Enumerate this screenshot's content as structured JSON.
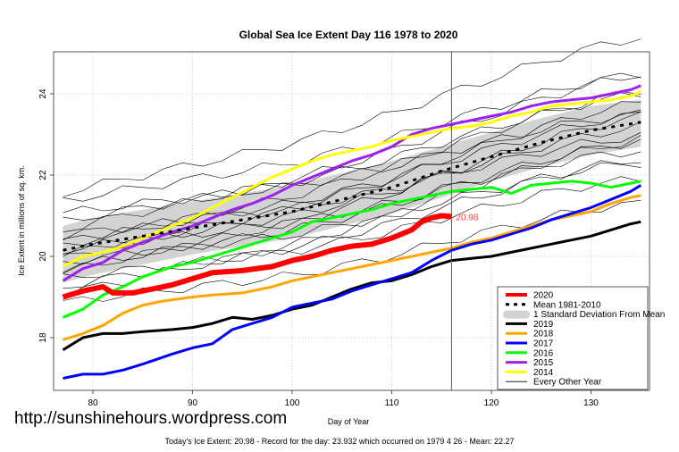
{
  "chart_data": {
    "type": "line",
    "title": "Global Sea Ice Extent Day 116 1978 to 2020",
    "xlabel": "Day of Year",
    "ylabel": "Ice Extent in millions of sq. km.",
    "xlim": [
      77,
      135
    ],
    "ylim": [
      16.8,
      24.9
    ],
    "xticks": [
      80,
      90,
      100,
      110,
      120,
      130
    ],
    "yticks": [
      18,
      20,
      22,
      24
    ],
    "grid": true,
    "current_day": 116,
    "current_value_label": "20.98",
    "legend_position": "bottom-right",
    "legend": [
      {
        "label": "2020",
        "color": "#ff0000",
        "style": "thick"
      },
      {
        "label": "Mean 1981-2010",
        "color": "#000000",
        "style": "dotted"
      },
      {
        "label": "1 Standard Deviation From Mean",
        "color": "#d3d3d3",
        "style": "band"
      },
      {
        "label": "2019",
        "color": "#000000",
        "style": "solid"
      },
      {
        "label": "2018",
        "color": "#ffa500",
        "style": "solid"
      },
      {
        "label": "2017",
        "color": "#0000ff",
        "style": "solid"
      },
      {
        "label": "2016",
        "color": "#00ff00",
        "style": "solid"
      },
      {
        "label": "2015",
        "color": "#a020f0",
        "style": "solid"
      },
      {
        "label": "2014",
        "color": "#ffff00",
        "style": "solid"
      },
      {
        "label": "Every Other Year",
        "color": "#000000",
        "style": "thin"
      }
    ],
    "series": [
      {
        "name": "2020",
        "color": "#ff0000",
        "x": [
          77,
          79,
          81,
          82,
          84,
          86,
          88,
          90,
          92,
          95,
          98,
          100,
          102,
          104,
          106,
          108,
          110,
          112,
          113,
          114,
          115,
          116
        ],
        "values": [
          19.0,
          19.15,
          19.25,
          19.1,
          19.1,
          19.2,
          19.3,
          19.45,
          19.6,
          19.65,
          19.75,
          19.9,
          20.0,
          20.15,
          20.25,
          20.3,
          20.45,
          20.65,
          20.85,
          20.95,
          21.0,
          20.98
        ]
      },
      {
        "name": "2019",
        "color": "#000000",
        "x": [
          77,
          79,
          81,
          83,
          85,
          88,
          90,
          92,
          94,
          96,
          98,
          100,
          102,
          104,
          106,
          108,
          110,
          112,
          114,
          116,
          118,
          120,
          122,
          124,
          126,
          128,
          130,
          132,
          134,
          135
        ],
        "values": [
          17.7,
          18.0,
          18.1,
          18.1,
          18.15,
          18.2,
          18.25,
          18.35,
          18.5,
          18.45,
          18.55,
          18.7,
          18.8,
          19.0,
          19.2,
          19.35,
          19.4,
          19.55,
          19.75,
          19.9,
          19.95,
          20.0,
          20.1,
          20.2,
          20.3,
          20.4,
          20.5,
          20.65,
          20.8,
          20.85
        ]
      },
      {
        "name": "2018",
        "color": "#ffa500",
        "x": [
          77,
          79,
          81,
          83,
          85,
          87,
          90,
          92,
          95,
          98,
          100,
          102,
          104,
          106,
          108,
          110,
          112,
          114,
          116,
          118,
          120,
          122,
          124,
          126,
          128,
          130,
          132,
          134,
          135
        ],
        "values": [
          17.95,
          18.1,
          18.3,
          18.6,
          18.8,
          18.9,
          19.0,
          19.05,
          19.1,
          19.25,
          19.4,
          19.5,
          19.6,
          19.7,
          19.8,
          19.9,
          20.0,
          20.1,
          20.2,
          20.35,
          20.45,
          20.6,
          20.75,
          20.9,
          21.0,
          21.1,
          21.3,
          21.45,
          21.5
        ]
      },
      {
        "name": "2017",
        "color": "#0000ff",
        "x": [
          77,
          79,
          81,
          83,
          85,
          88,
          90,
          92,
          94,
          96,
          98,
          100,
          102,
          104,
          106,
          108,
          110,
          112,
          114,
          116,
          118,
          120,
          122,
          124,
          126,
          128,
          130,
          132,
          134,
          135
        ],
        "values": [
          17.0,
          17.1,
          17.1,
          17.2,
          17.35,
          17.6,
          17.75,
          17.85,
          18.2,
          18.35,
          18.5,
          18.75,
          18.85,
          18.95,
          19.15,
          19.3,
          19.45,
          19.6,
          19.9,
          20.15,
          20.3,
          20.4,
          20.55,
          20.7,
          20.9,
          21.05,
          21.2,
          21.4,
          21.6,
          21.75
        ]
      },
      {
        "name": "2016",
        "color": "#00ff00",
        "x": [
          77,
          79,
          81,
          83,
          85,
          88,
          90,
          92,
          94,
          96,
          98,
          100,
          102,
          104,
          106,
          108,
          110,
          112,
          114,
          116,
          118,
          120,
          122,
          124,
          126,
          128,
          130,
          132,
          134,
          135
        ],
        "values": [
          18.5,
          18.7,
          19.05,
          19.25,
          19.5,
          19.75,
          19.85,
          20.0,
          20.15,
          20.3,
          20.45,
          20.6,
          20.85,
          20.95,
          21.05,
          21.15,
          21.3,
          21.4,
          21.5,
          21.6,
          21.65,
          21.7,
          21.55,
          21.75,
          21.8,
          21.85,
          21.8,
          21.7,
          21.8,
          21.85
        ]
      },
      {
        "name": "2015",
        "color": "#a020f0",
        "x": [
          77,
          79,
          81,
          83,
          85,
          88,
          90,
          92,
          94,
          96,
          98,
          100,
          102,
          104,
          106,
          108,
          110,
          112,
          114,
          116,
          118,
          120,
          122,
          124,
          126,
          128,
          130,
          132,
          134,
          135
        ],
        "values": [
          19.4,
          19.7,
          19.85,
          20.15,
          20.35,
          20.6,
          20.75,
          20.95,
          21.15,
          21.3,
          21.5,
          21.75,
          21.95,
          22.15,
          22.35,
          22.5,
          22.7,
          23.0,
          23.15,
          23.25,
          23.35,
          23.45,
          23.55,
          23.7,
          23.8,
          23.85,
          23.9,
          24.0,
          24.1,
          24.2
        ]
      },
      {
        "name": "2014",
        "color": "#ffff00",
        "x": [
          77,
          79,
          81,
          83,
          85,
          88,
          90,
          92,
          94,
          96,
          98,
          100,
          102,
          104,
          106,
          108,
          110,
          112,
          114,
          116,
          118,
          120,
          122,
          124,
          126,
          128,
          130,
          132,
          134,
          135
        ],
        "values": [
          19.75,
          20.0,
          20.1,
          20.25,
          20.45,
          20.75,
          20.95,
          21.2,
          21.45,
          21.7,
          21.95,
          22.15,
          22.35,
          22.5,
          22.6,
          22.7,
          22.85,
          22.95,
          23.05,
          23.15,
          23.2,
          23.3,
          23.45,
          23.55,
          23.7,
          23.75,
          23.8,
          23.85,
          23.95,
          24.05
        ]
      },
      {
        "name": "Mean 1981-2010",
        "color": "#000000",
        "x": [
          77,
          80,
          85,
          90,
          95,
          100,
          105,
          110,
          115,
          120,
          125,
          130,
          135
        ],
        "values": [
          20.15,
          20.3,
          20.5,
          20.7,
          20.9,
          21.1,
          21.4,
          21.7,
          22.1,
          22.45,
          22.8,
          23.1,
          23.3
        ]
      }
    ],
    "sd_band": {
      "x": [
        77,
        80,
        85,
        90,
        95,
        100,
        105,
        110,
        115,
        120,
        125,
        130,
        135
      ],
      "upper": [
        20.75,
        20.95,
        21.15,
        21.35,
        21.55,
        21.75,
        22.05,
        22.35,
        22.7,
        23.05,
        23.4,
        23.7,
        23.85
      ],
      "lower": [
        19.35,
        19.55,
        19.8,
        20.05,
        20.25,
        20.45,
        20.75,
        21.05,
        21.45,
        21.85,
        22.2,
        22.5,
        22.7
      ]
    },
    "other_year_offsets": [
      0.9,
      0.7,
      0.5,
      0.35,
      0.2,
      0.1,
      0.0,
      -0.1,
      -0.2,
      -0.3,
      -0.45,
      -0.55,
      -0.7,
      -0.9,
      -1.1,
      -1.3,
      1.2,
      1.4
    ]
  },
  "watermark": "http://sunshinehours.wordpress.com",
  "footnote": "Today's Ice Extent: 20.98  - Record for the day: 23.932 which occurred on 1979 4 26  - Mean: 22.27"
}
